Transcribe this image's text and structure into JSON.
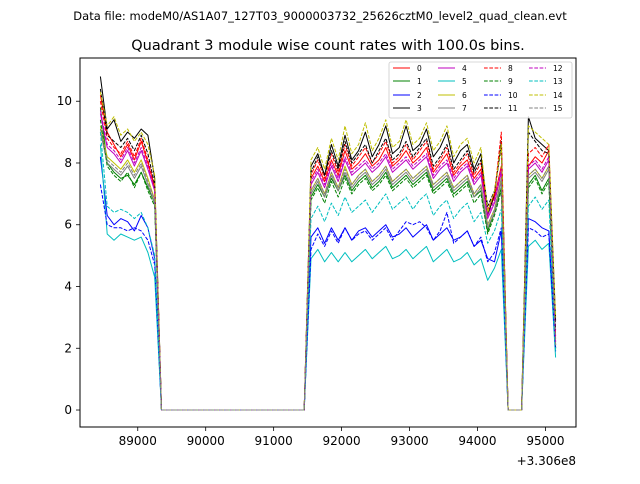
{
  "header": {
    "data_file": "Data file: modeM0/AS1A07_127T03_9000003732_25626cztM0_level2_quad_clean.evt"
  },
  "chart_data": {
    "type": "line",
    "title": "Quadrant 3 module wise count rates with 100.0s bins.",
    "xlabel": "",
    "ylabel": "",
    "x_offset_label": "+3.306e8",
    "xlim": [
      88150,
      95450
    ],
    "ylim": [
      -0.55,
      11.4
    ],
    "x_ticks": [
      89000,
      90000,
      91000,
      92000,
      93000,
      94000,
      95000
    ],
    "x_tick_labels": [
      "89000",
      "90000",
      "91000",
      "92000",
      "93000",
      "94000",
      "95000"
    ],
    "y_ticks": [
      0,
      2,
      4,
      6,
      8,
      10
    ],
    "y_tick_labels": [
      "0",
      "2",
      "4",
      "6",
      "8",
      "10"
    ],
    "grid": false,
    "legend_position": "top-right",
    "x": [
      88450,
      88550,
      88650,
      88750,
      88850,
      88950,
      89050,
      89150,
      89250,
      89350,
      89450,
      89550,
      89650,
      89750,
      89850,
      89950,
      90050,
      90150,
      90250,
      90350,
      90450,
      90550,
      90650,
      90750,
      90850,
      90950,
      91050,
      91150,
      91250,
      91350,
      91450,
      91550,
      91650,
      91750,
      91850,
      91950,
      92050,
      92150,
      92250,
      92350,
      92450,
      92550,
      92650,
      92750,
      92850,
      92950,
      93050,
      93150,
      93250,
      93350,
      93450,
      93550,
      93650,
      93750,
      93850,
      93950,
      94050,
      94150,
      94250,
      94350,
      94450,
      94550,
      94650,
      94750,
      94850,
      94950,
      95050,
      95150
    ],
    "series": [
      {
        "name": "0",
        "color": "#ff0000",
        "dash": "solid",
        "values": [
          10.2,
          9.0,
          8.6,
          8.2,
          8.6,
          8.1,
          8.7,
          8.0,
          7.2,
          0,
          0,
          0,
          0,
          0,
          0,
          0,
          0,
          0,
          0,
          0,
          0,
          0,
          0,
          0,
          0,
          0,
          0,
          0,
          0,
          0,
          0,
          7.5,
          7.9,
          7.4,
          8.1,
          7.6,
          8.4,
          7.8,
          8.0,
          8.3,
          7.9,
          8.1,
          8.5,
          7.9,
          8.1,
          8.4,
          8.0,
          8.2,
          8.5,
          7.7,
          8.0,
          8.3,
          7.6,
          7.9,
          8.1,
          7.5,
          7.8,
          6.4,
          6.9,
          7.9,
          0,
          0,
          0,
          7.9,
          8.2,
          8.0,
          8.4,
          2.3
        ]
      },
      {
        "name": "1",
        "color": "#008000",
        "dash": "solid",
        "values": [
          9.8,
          8.0,
          7.7,
          7.5,
          7.6,
          7.3,
          7.7,
          7.2,
          6.7,
          0,
          0,
          0,
          0,
          0,
          0,
          0,
          0,
          0,
          0,
          0,
          0,
          0,
          0,
          0,
          0,
          0,
          0,
          0,
          0,
          0,
          0,
          6.9,
          7.3,
          6.9,
          7.5,
          7.1,
          7.6,
          7.1,
          7.4,
          7.6,
          7.2,
          7.4,
          7.7,
          7.2,
          7.4,
          7.6,
          7.3,
          7.5,
          7.7,
          7.1,
          7.3,
          7.5,
          7.0,
          7.2,
          7.4,
          6.9,
          7.1,
          5.8,
          6.4,
          7.2,
          0,
          0,
          0,
          7.3,
          7.6,
          7.1,
          7.5,
          2.0
        ]
      },
      {
        "name": "2",
        "color": "#0000ff",
        "dash": "solid",
        "values": [
          8.2,
          6.3,
          6.0,
          6.2,
          6.1,
          5.8,
          6.3,
          5.9,
          4.9,
          0,
          0,
          0,
          0,
          0,
          0,
          0,
          0,
          0,
          0,
          0,
          0,
          0,
          0,
          0,
          0,
          0,
          0,
          0,
          0,
          0,
          0,
          5.6,
          5.9,
          5.4,
          5.9,
          5.5,
          5.9,
          5.5,
          5.8,
          5.9,
          5.6,
          5.8,
          6.0,
          5.6,
          5.7,
          5.9,
          5.6,
          5.8,
          6.0,
          5.5,
          5.7,
          5.9,
          5.5,
          5.6,
          5.8,
          5.3,
          5.5,
          4.9,
          4.8,
          5.8,
          0,
          0,
          0,
          6.2,
          6.1,
          5.9,
          5.8,
          2.0
        ]
      },
      {
        "name": "3",
        "color": "#000000",
        "dash": "solid",
        "values": [
          10.8,
          9.1,
          9.4,
          8.7,
          9.0,
          8.8,
          9.1,
          8.9,
          7.5,
          0,
          0,
          0,
          0,
          0,
          0,
          0,
          0,
          0,
          0,
          0,
          0,
          0,
          0,
          0,
          0,
          0,
          0,
          0,
          0,
          0,
          0,
          7.9,
          8.3,
          7.6,
          8.6,
          7.9,
          8.9,
          8.1,
          8.4,
          9.0,
          8.2,
          8.6,
          9.2,
          8.3,
          8.5,
          9.2,
          8.4,
          8.6,
          9.1,
          8.2,
          8.5,
          9.0,
          8.0,
          8.4,
          8.6,
          7.8,
          8.3,
          6.3,
          7.0,
          8.7,
          0,
          0,
          0,
          9.5,
          8.8,
          8.6,
          8.4,
          2.9
        ]
      },
      {
        "name": "4",
        "color": "#bf00bf",
        "dash": "solid",
        "values": [
          9.6,
          8.5,
          8.3,
          8.0,
          8.4,
          7.9,
          8.4,
          7.8,
          7.1,
          0,
          0,
          0,
          0,
          0,
          0,
          0,
          0,
          0,
          0,
          0,
          0,
          0,
          0,
          0,
          0,
          0,
          0,
          0,
          0,
          0,
          0,
          7.3,
          7.7,
          7.2,
          7.9,
          7.4,
          8.1,
          7.6,
          7.8,
          8.0,
          7.7,
          7.9,
          8.2,
          7.7,
          7.9,
          8.1,
          7.8,
          8.0,
          8.2,
          7.5,
          7.8,
          8.0,
          7.4,
          7.7,
          7.9,
          7.3,
          7.6,
          6.2,
          6.7,
          7.7,
          0,
          0,
          0,
          7.8,
          8.0,
          7.7,
          8.1,
          2.2
        ]
      },
      {
        "name": "5",
        "color": "#00bfbf",
        "dash": "solid",
        "values": [
          8.6,
          5.7,
          5.5,
          5.7,
          5.6,
          5.5,
          5.6,
          5.1,
          4.3,
          0,
          0,
          0,
          0,
          0,
          0,
          0,
          0,
          0,
          0,
          0,
          0,
          0,
          0,
          0,
          0,
          0,
          0,
          0,
          0,
          0,
          0,
          4.9,
          5.2,
          4.8,
          5.1,
          4.8,
          5.1,
          4.8,
          5.0,
          5.2,
          4.9,
          5.1,
          5.3,
          4.9,
          5.0,
          5.2,
          4.9,
          5.1,
          5.3,
          4.8,
          5.0,
          5.2,
          4.8,
          4.9,
          5.1,
          4.7,
          4.9,
          4.2,
          4.6,
          5.2,
          0,
          0,
          0,
          5.3,
          5.5,
          5.2,
          5.4,
          1.7
        ]
      },
      {
        "name": "6",
        "color": "#bfbf00",
        "dash": "solid",
        "values": [
          9.2,
          8.2,
          8.0,
          7.8,
          8.1,
          7.7,
          8.1,
          7.5,
          6.8,
          0,
          0,
          0,
          0,
          0,
          0,
          0,
          0,
          0,
          0,
          0,
          0,
          0,
          0,
          0,
          0,
          0,
          0,
          0,
          0,
          0,
          0,
          7.1,
          7.5,
          7.0,
          7.7,
          7.2,
          7.9,
          7.3,
          7.6,
          7.8,
          7.4,
          7.6,
          7.9,
          7.4,
          7.6,
          7.8,
          7.5,
          7.7,
          7.9,
          7.3,
          7.5,
          7.7,
          7.2,
          7.4,
          7.6,
          7.0,
          7.3,
          6.0,
          6.5,
          7.5,
          0,
          0,
          0,
          7.6,
          7.8,
          7.5,
          7.9,
          2.1
        ]
      },
      {
        "name": "7",
        "color": "#808080",
        "dash": "solid",
        "values": [
          9.0,
          8.0,
          7.8,
          7.6,
          7.9,
          7.5,
          7.9,
          7.3,
          6.7,
          0,
          0,
          0,
          0,
          0,
          0,
          0,
          0,
          0,
          0,
          0,
          0,
          0,
          0,
          0,
          0,
          0,
          0,
          0,
          0,
          0,
          0,
          7.0,
          7.4,
          6.9,
          7.6,
          7.1,
          7.7,
          7.2,
          7.5,
          7.7,
          7.3,
          7.5,
          7.8,
          7.3,
          7.5,
          7.7,
          7.4,
          7.6,
          7.8,
          7.2,
          7.4,
          7.6,
          7.1,
          7.3,
          7.5,
          6.9,
          7.2,
          5.9,
          6.4,
          7.4,
          0,
          0,
          0,
          7.5,
          7.7,
          7.4,
          7.8,
          2.1
        ]
      },
      {
        "name": "8",
        "color": "#ff0000",
        "dash": "dashed",
        "values": [
          10.0,
          8.8,
          8.5,
          8.3,
          8.7,
          8.2,
          8.8,
          8.1,
          7.2,
          0,
          0,
          0,
          0,
          0,
          0,
          0,
          0,
          0,
          0,
          0,
          0,
          0,
          0,
          0,
          0,
          0,
          0,
          0,
          0,
          0,
          0,
          7.6,
          8.1,
          7.5,
          8.3,
          7.7,
          8.6,
          7.9,
          8.2,
          8.5,
          8.0,
          8.3,
          8.7,
          8.0,
          8.2,
          8.6,
          8.1,
          8.4,
          8.7,
          7.8,
          8.1,
          8.5,
          7.7,
          8.0,
          8.3,
          7.6,
          8.0,
          6.5,
          7.0,
          9.0,
          0,
          0,
          0,
          8.3,
          8.5,
          8.2,
          8.6,
          2.4
        ]
      },
      {
        "name": "9",
        "color": "#008000",
        "dash": "dashed",
        "values": [
          9.4,
          7.9,
          7.6,
          7.4,
          7.7,
          7.2,
          7.7,
          7.1,
          6.6,
          0,
          0,
          0,
          0,
          0,
          0,
          0,
          0,
          0,
          0,
          0,
          0,
          0,
          0,
          0,
          0,
          0,
          0,
          0,
          0,
          0,
          0,
          6.8,
          7.2,
          6.7,
          7.4,
          6.9,
          7.5,
          7.0,
          7.3,
          7.5,
          7.1,
          7.3,
          7.6,
          7.1,
          7.3,
          7.5,
          7.2,
          7.4,
          7.6,
          7.0,
          7.2,
          7.4,
          6.9,
          7.1,
          7.3,
          6.7,
          7.0,
          5.7,
          6.3,
          7.1,
          0,
          0,
          0,
          7.2,
          7.5,
          7.0,
          7.4,
          2.0
        ]
      },
      {
        "name": "10",
        "color": "#0000ff",
        "dash": "dashed",
        "values": [
          7.3,
          6.0,
          5.9,
          5.9,
          5.8,
          5.9,
          5.8,
          5.5,
          4.7,
          0,
          0,
          0,
          0,
          0,
          0,
          0,
          0,
          0,
          0,
          0,
          0,
          0,
          0,
          0,
          0,
          0,
          0,
          0,
          0,
          0,
          0,
          5.2,
          5.7,
          5.3,
          5.8,
          5.4,
          5.9,
          5.5,
          5.7,
          5.8,
          5.5,
          5.7,
          5.9,
          5.5,
          5.8,
          6.1,
          6.0,
          6.1,
          5.9,
          5.5,
          5.8,
          6.4,
          5.4,
          5.6,
          5.8,
          5.3,
          5.6,
          4.8,
          5.1,
          5.9,
          0,
          0,
          0,
          5.9,
          5.8,
          5.6,
          5.7,
          1.9
        ]
      },
      {
        "name": "11",
        "color": "#000000",
        "dash": "dashed",
        "values": [
          10.4,
          8.9,
          8.7,
          8.5,
          8.8,
          8.4,
          8.9,
          8.3,
          7.3,
          0,
          0,
          0,
          0,
          0,
          0,
          0,
          0,
          0,
          0,
          0,
          0,
          0,
          0,
          0,
          0,
          0,
          0,
          0,
          0,
          0,
          0,
          7.7,
          8.2,
          7.6,
          8.4,
          7.8,
          8.7,
          8.0,
          8.3,
          8.6,
          8.0,
          8.4,
          8.8,
          8.1,
          8.3,
          8.7,
          8.2,
          8.5,
          8.8,
          7.9,
          8.2,
          8.6,
          7.8,
          8.1,
          8.4,
          7.7,
          8.1,
          6.6,
          7.1,
          8.5,
          0,
          0,
          0,
          9.0,
          8.7,
          8.4,
          8.3,
          2.6
        ]
      },
      {
        "name": "12",
        "color": "#bf00bf",
        "dash": "dashed",
        "values": [
          9.7,
          8.6,
          8.4,
          8.1,
          8.5,
          8.0,
          8.5,
          7.9,
          7.1,
          0,
          0,
          0,
          0,
          0,
          0,
          0,
          0,
          0,
          0,
          0,
          0,
          0,
          0,
          0,
          0,
          0,
          0,
          0,
          0,
          0,
          0,
          7.4,
          7.8,
          7.3,
          8.0,
          7.5,
          8.2,
          7.7,
          7.9,
          8.1,
          7.8,
          8.0,
          8.3,
          7.8,
          8.0,
          8.2,
          7.9,
          8.1,
          8.3,
          7.6,
          7.9,
          8.1,
          7.5,
          7.8,
          8.0,
          7.4,
          7.7,
          6.3,
          6.8,
          7.8,
          0,
          0,
          0,
          7.9,
          8.1,
          7.8,
          8.2,
          2.2
        ]
      },
      {
        "name": "13",
        "color": "#00bfbf",
        "dash": "dashed",
        "values": [
          9.0,
          6.6,
          6.4,
          6.5,
          6.4,
          6.2,
          6.4,
          5.9,
          5.0,
          0,
          0,
          0,
          0,
          0,
          0,
          0,
          0,
          0,
          0,
          0,
          0,
          0,
          0,
          0,
          0,
          0,
          0,
          0,
          0,
          0,
          0,
          6.2,
          6.6,
          6.1,
          6.7,
          6.3,
          6.9,
          6.4,
          6.6,
          6.8,
          6.4,
          6.7,
          7.0,
          6.5,
          6.7,
          6.9,
          6.5,
          6.8,
          7.0,
          6.3,
          6.6,
          6.8,
          6.2,
          6.5,
          6.7,
          6.1,
          6.4,
          5.4,
          5.8,
          6.5,
          0,
          0,
          0,
          6.6,
          6.9,
          6.5,
          6.8,
          1.9
        ]
      },
      {
        "name": "14",
        "color": "#bfbf00",
        "dash": "dashed",
        "values": [
          10.3,
          9.2,
          9.5,
          8.9,
          9.1,
          8.7,
          9.0,
          8.6,
          7.6,
          0,
          0,
          0,
          0,
          0,
          0,
          0,
          0,
          0,
          0,
          0,
          0,
          0,
          0,
          0,
          0,
          0,
          0,
          0,
          0,
          0,
          0,
          8.1,
          8.5,
          7.8,
          8.8,
          8.1,
          9.2,
          8.3,
          8.6,
          9.3,
          8.4,
          8.8,
          9.4,
          8.5,
          8.7,
          9.4,
          8.6,
          8.8,
          9.3,
          8.4,
          8.7,
          9.2,
          8.2,
          8.6,
          8.8,
          8.0,
          8.5,
          6.4,
          7.1,
          8.6,
          0,
          0,
          0,
          9.2,
          9.0,
          8.8,
          8.6,
          3.0
        ]
      },
      {
        "name": "15",
        "color": "#808080",
        "dash": "dashed",
        "values": [
          9.1,
          8.1,
          7.9,
          7.7,
          8.0,
          7.6,
          8.0,
          7.4,
          6.8,
          0,
          0,
          0,
          0,
          0,
          0,
          0,
          0,
          0,
          0,
          0,
          0,
          0,
          0,
          0,
          0,
          0,
          0,
          0,
          0,
          0,
          0,
          7.1,
          7.5,
          7.0,
          7.7,
          7.2,
          7.8,
          7.3,
          7.6,
          7.8,
          7.4,
          7.6,
          7.9,
          7.4,
          7.6,
          7.8,
          7.5,
          7.7,
          7.9,
          7.3,
          7.5,
          7.7,
          7.2,
          7.4,
          7.6,
          7.0,
          7.3,
          6.0,
          6.5,
          7.5,
          0,
          0,
          0,
          7.6,
          7.8,
          7.5,
          7.9,
          2.1
        ]
      }
    ]
  }
}
